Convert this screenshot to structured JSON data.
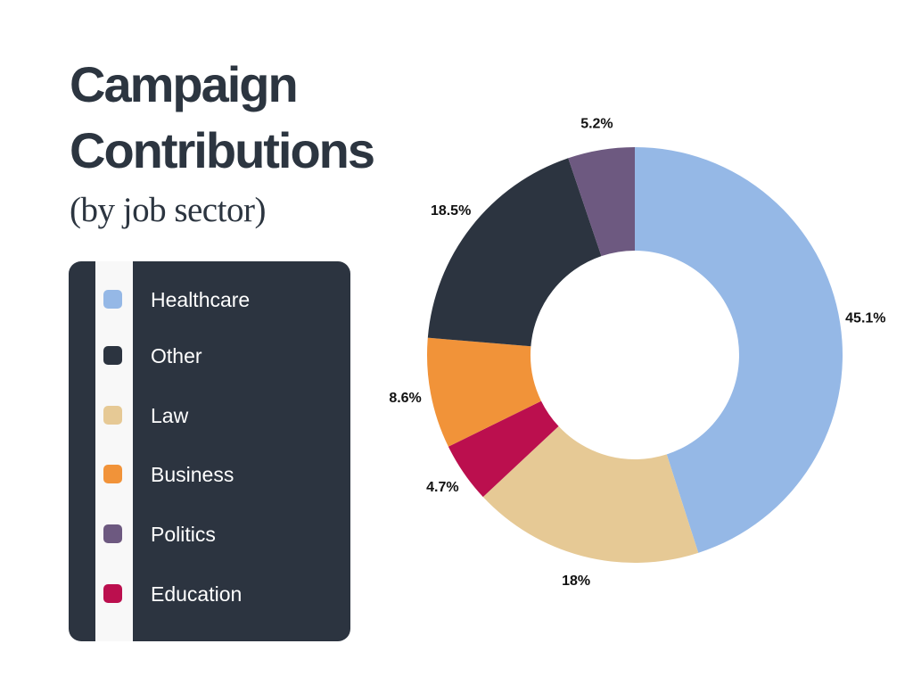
{
  "title": "Campaign Contributions",
  "subtitle": "(by job sector)",
  "legend": {
    "items": [
      {
        "label": "Healthcare",
        "color": "#95b8e6"
      },
      {
        "label": "Other",
        "color": "#2c3440"
      },
      {
        "label": "Law",
        "color": "#e6c995"
      },
      {
        "label": "Business",
        "color": "#f19339"
      },
      {
        "label": "Politics",
        "color": "#6d5980"
      },
      {
        "label": "Education",
        "color": "#bb0f4e"
      }
    ]
  },
  "chart_data": {
    "type": "pie",
    "variant": "donut",
    "title": "Campaign Contributions",
    "subtitle": "(by job sector)",
    "legend_position": "left",
    "slices": [
      {
        "label": "Healthcare",
        "value": 45.1,
        "display": "45.1%",
        "color": "#95b8e6"
      },
      {
        "label": "Law",
        "value": 18,
        "display": "18%",
        "color": "#e6c995"
      },
      {
        "label": "Education",
        "value": 4.7,
        "display": "4.7%",
        "color": "#bb0f4e"
      },
      {
        "label": "Business",
        "value": 8.6,
        "display": "8.6%",
        "color": "#f19339"
      },
      {
        "label": "Other",
        "value": 18.5,
        "display": "18.5%",
        "color": "#2c3440"
      },
      {
        "label": "Politics",
        "value": 5.2,
        "display": "5.2%",
        "color": "#6d5980"
      }
    ]
  }
}
